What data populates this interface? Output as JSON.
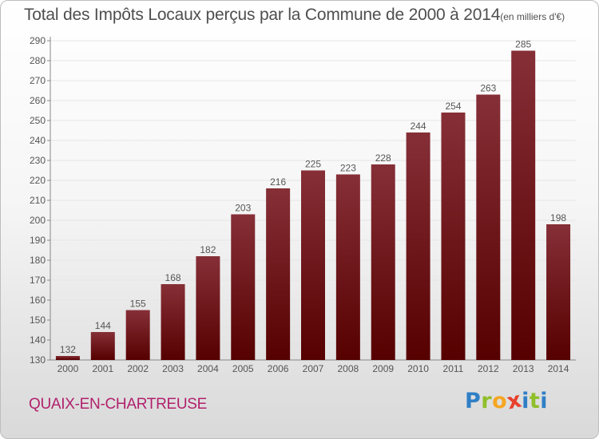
{
  "title": "Total des Impôts Locaux perçus par la Commune de 2000 à 2014",
  "unit": "(en milliers d'€)",
  "commune": "QUAIX-EN-CHARTREUSE",
  "logo": {
    "letters": [
      "P",
      "r",
      "o",
      "x",
      "i",
      "t",
      "i"
    ],
    "colors": [
      "#2f7fc6",
      "#8fbf2a",
      "#f5a623",
      "#e8402b",
      "#2f7fc6",
      "#8fbf2a",
      "#2f7fc6"
    ]
  },
  "colors": {
    "bar_top": "#862f37",
    "bar_bottom": "#560000",
    "grid": "#e6e6e6",
    "text": "#555555"
  },
  "chart_data": {
    "type": "bar",
    "title": "Total des Impôts Locaux perçus par la Commune de 2000 à 2014",
    "unit": "(en milliers d'€)",
    "categories": [
      "2000",
      "2001",
      "2002",
      "2003",
      "2004",
      "2005",
      "2006",
      "2007",
      "2008",
      "2009",
      "2010",
      "2011",
      "2012",
      "2013",
      "2014"
    ],
    "values": [
      132,
      144,
      155,
      168,
      182,
      203,
      216,
      225,
      223,
      228,
      244,
      254,
      263,
      285,
      198
    ],
    "ylim": [
      130,
      290
    ],
    "yticks": [
      130,
      140,
      150,
      160,
      170,
      180,
      190,
      200,
      210,
      220,
      230,
      240,
      250,
      260,
      270,
      280,
      290
    ],
    "grid": true,
    "data_labels": true
  }
}
